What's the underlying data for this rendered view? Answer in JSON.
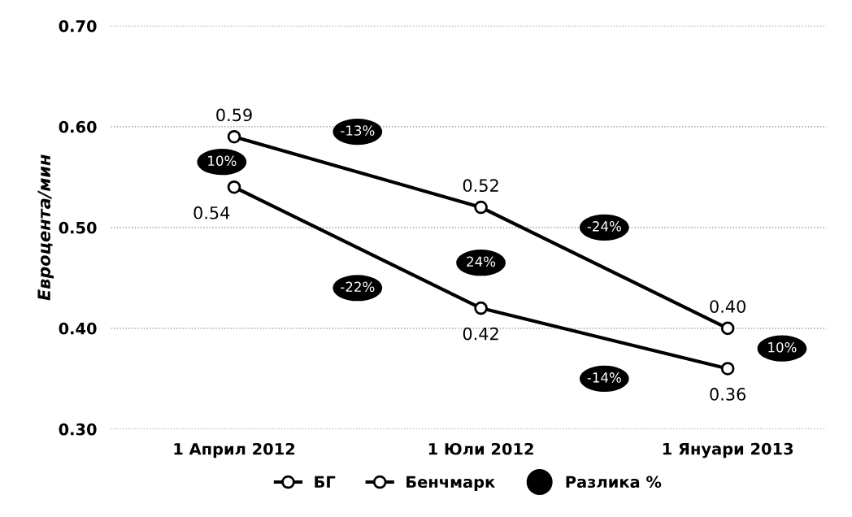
{
  "chart_data": {
    "type": "line",
    "ylabel": "Евроцента/мин",
    "categories": [
      "1 Април 2012",
      "1 Юли 2012",
      "1 Януари 2013"
    ],
    "series": [
      {
        "name": "БГ",
        "color": "#000000",
        "values": [
          0.59,
          0.52,
          0.4
        ],
        "value_labels": [
          "0.59",
          "0.52",
          "0.40"
        ]
      },
      {
        "name": "Бенчмарк",
        "color": "#000000",
        "values": [
          0.54,
          0.42,
          0.36
        ],
        "value_labels": [
          "0.54",
          "0.42",
          "0.36"
        ]
      }
    ],
    "ylim": [
      0.3,
      0.7
    ],
    "yticks": [
      {
        "value": 0.3,
        "label": "0.30"
      },
      {
        "value": 0.4,
        "label": "0.40"
      },
      {
        "value": 0.5,
        "label": "0.50"
      },
      {
        "value": 0.6,
        "label": "0.60"
      },
      {
        "value": 0.7,
        "label": "0.70"
      }
    ],
    "grid": "y",
    "legend": "bottom",
    "marker": "circle",
    "line_style": "solid",
    "annotations": [
      "10%",
      "24%",
      "10%",
      "-13%",
      "-24%",
      "-22%",
      "-14%",
      "Разлика %"
    ]
  }
}
